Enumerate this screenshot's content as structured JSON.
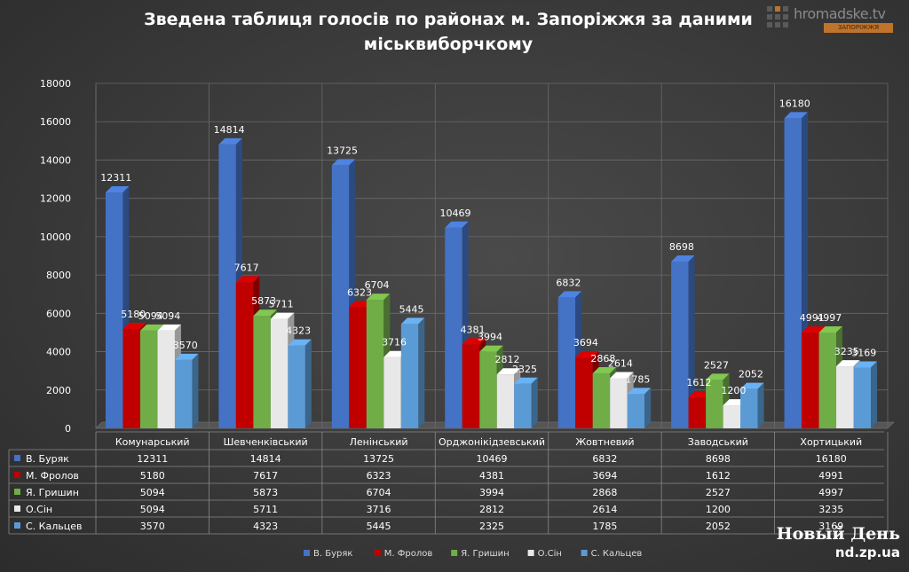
{
  "chart_data": {
    "type": "bar",
    "title": "Зведена таблиця голосів по районах м. Запоріжжя за даними міськвиборчкому",
    "categories": [
      "Комунарський",
      "Шевченківський",
      "Ленінський",
      "Орджонікідзевський",
      "Жовтневий",
      "Заводський",
      "Хортицький"
    ],
    "series": [
      {
        "name": "В. Буряк",
        "color": "#4472c4",
        "values": [
          12311,
          14814,
          13725,
          10469,
          6832,
          8698,
          16180
        ]
      },
      {
        "name": "М. Фролов",
        "color": "#c00000",
        "values": [
          5180,
          7617,
          6323,
          4381,
          3694,
          1612,
          4991
        ]
      },
      {
        "name": "Я. Гришин",
        "color": "#70ad47",
        "values": [
          5094,
          5873,
          6704,
          3994,
          2868,
          2527,
          4997
        ]
      },
      {
        "name": "О.Сін",
        "color": "#e8e8e8",
        "values": [
          5094,
          5711,
          3716,
          2812,
          2614,
          1200,
          3235
        ]
      },
      {
        "name": "С. Кальцев",
        "color": "#5b9bd5",
        "values": [
          3570,
          4323,
          5445,
          2325,
          1785,
          2052,
          3169
        ]
      }
    ],
    "ylim": [
      0,
      18000
    ],
    "yticks": [
      0,
      2000,
      4000,
      6000,
      8000,
      10000,
      12000,
      14000,
      16000,
      18000
    ],
    "xlabel": "",
    "ylabel": "",
    "grid": true,
    "legend_position": "bottom",
    "data_table": true
  },
  "logo": {
    "name": "hromadske.tv",
    "sub": "ЗАПОРІЖЖЯ"
  },
  "watermark": {
    "title": "Новый День",
    "url": "nd.zp.ua"
  }
}
